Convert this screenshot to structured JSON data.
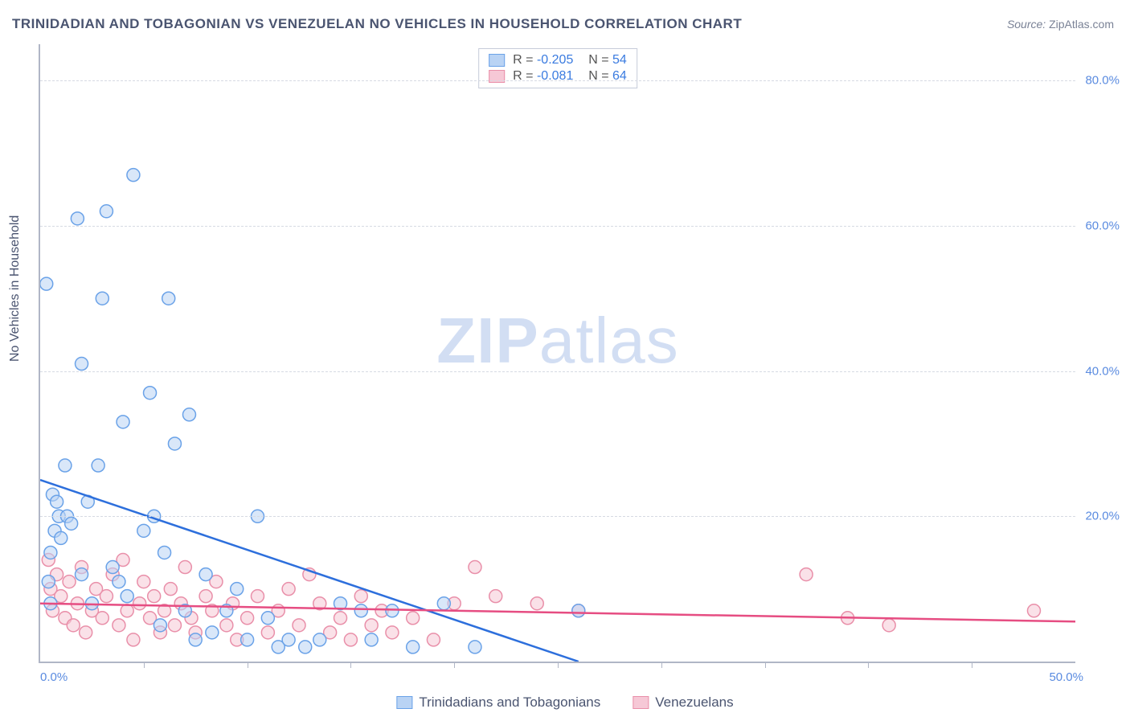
{
  "title": "TRINIDADIAN AND TOBAGONIAN VS VENEZUELAN NO VEHICLES IN HOUSEHOLD CORRELATION CHART",
  "source_label": "Source:",
  "source_value": "ZipAtlas.com",
  "ylabel": "No Vehicles in Household",
  "watermark": "ZIPatlas",
  "chart": {
    "type": "scatter",
    "background_color": "#ffffff",
    "grid_color": "#d6dae3",
    "axis_color": "#b0b6c6",
    "tick_label_color": "#5a8be0",
    "label_color": "#4a5470",
    "label_fontsize": 16,
    "tick_fontsize": 15,
    "xlim": [
      0,
      50
    ],
    "ylim": [
      0,
      85
    ],
    "xtick_labels": {
      "0": "0.0%",
      "50": "50.0%"
    },
    "ytick_positions": [
      20,
      40,
      60,
      80
    ],
    "ytick_format": "%.1f%%",
    "xtick_minor_count": 9,
    "marker_radius": 8,
    "marker_stroke_width": 1.5,
    "trend_line_width": 2.5,
    "series": [
      {
        "name": "Trinidadians and Tobagonians",
        "fill_color": "#b9d3f4",
        "stroke_color": "#6aa2e8",
        "fill_opacity": 0.55,
        "line_color": "#2d6fdc",
        "dash_color": "#6aa2e8",
        "R": "-0.205",
        "N": "54",
        "trend": {
          "x1": 0,
          "y1": 25,
          "x2": 26,
          "y2": 0,
          "dash_to_x": 50
        },
        "points": [
          [
            0.3,
            52
          ],
          [
            0.4,
            11
          ],
          [
            0.5,
            15
          ],
          [
            0.5,
            8
          ],
          [
            0.6,
            23
          ],
          [
            0.7,
            18
          ],
          [
            0.8,
            22
          ],
          [
            0.9,
            20
          ],
          [
            1.0,
            17
          ],
          [
            1.2,
            27
          ],
          [
            1.3,
            20
          ],
          [
            1.5,
            19
          ],
          [
            1.8,
            61
          ],
          [
            2.0,
            12
          ],
          [
            2.0,
            41
          ],
          [
            2.3,
            22
          ],
          [
            2.5,
            8
          ],
          [
            2.8,
            27
          ],
          [
            3.0,
            50
          ],
          [
            3.2,
            62
          ],
          [
            3.5,
            13
          ],
          [
            3.8,
            11
          ],
          [
            4.0,
            33
          ],
          [
            4.2,
            9
          ],
          [
            4.5,
            67
          ],
          [
            5.0,
            18
          ],
          [
            5.3,
            37
          ],
          [
            5.5,
            20
          ],
          [
            5.8,
            5
          ],
          [
            6.0,
            15
          ],
          [
            6.2,
            50
          ],
          [
            6.5,
            30
          ],
          [
            7.0,
            7
          ],
          [
            7.2,
            34
          ],
          [
            7.5,
            3
          ],
          [
            8.0,
            12
          ],
          [
            8.3,
            4
          ],
          [
            9.0,
            7
          ],
          [
            9.5,
            10
          ],
          [
            10.0,
            3
          ],
          [
            10.5,
            20
          ],
          [
            11.0,
            6
          ],
          [
            11.5,
            2
          ],
          [
            12.0,
            3
          ],
          [
            12.8,
            2
          ],
          [
            13.5,
            3
          ],
          [
            14.5,
            8
          ],
          [
            15.5,
            7
          ],
          [
            16.0,
            3
          ],
          [
            17.0,
            7
          ],
          [
            18.0,
            2
          ],
          [
            19.5,
            8
          ],
          [
            21.0,
            2
          ],
          [
            26.0,
            7
          ]
        ]
      },
      {
        "name": "Venezuelans",
        "fill_color": "#f6c8d6",
        "stroke_color": "#e98fa9",
        "fill_opacity": 0.55,
        "line_color": "#e64d82",
        "R": "-0.081",
        "N": "64",
        "trend": {
          "x1": 0,
          "y1": 8,
          "x2": 50,
          "y2": 5.5
        },
        "points": [
          [
            0.4,
            14
          ],
          [
            0.5,
            10
          ],
          [
            0.6,
            7
          ],
          [
            0.8,
            12
          ],
          [
            1.0,
            9
          ],
          [
            1.2,
            6
          ],
          [
            1.4,
            11
          ],
          [
            1.6,
            5
          ],
          [
            1.8,
            8
          ],
          [
            2.0,
            13
          ],
          [
            2.2,
            4
          ],
          [
            2.5,
            7
          ],
          [
            2.7,
            10
          ],
          [
            3.0,
            6
          ],
          [
            3.2,
            9
          ],
          [
            3.5,
            12
          ],
          [
            3.8,
            5
          ],
          [
            4.0,
            14
          ],
          [
            4.2,
            7
          ],
          [
            4.5,
            3
          ],
          [
            4.8,
            8
          ],
          [
            5.0,
            11
          ],
          [
            5.3,
            6
          ],
          [
            5.5,
            9
          ],
          [
            5.8,
            4
          ],
          [
            6.0,
            7
          ],
          [
            6.3,
            10
          ],
          [
            6.5,
            5
          ],
          [
            6.8,
            8
          ],
          [
            7.0,
            13
          ],
          [
            7.3,
            6
          ],
          [
            7.5,
            4
          ],
          [
            8.0,
            9
          ],
          [
            8.3,
            7
          ],
          [
            8.5,
            11
          ],
          [
            9.0,
            5
          ],
          [
            9.3,
            8
          ],
          [
            9.5,
            3
          ],
          [
            10.0,
            6
          ],
          [
            10.5,
            9
          ],
          [
            11.0,
            4
          ],
          [
            11.5,
            7
          ],
          [
            12.0,
            10
          ],
          [
            12.5,
            5
          ],
          [
            13.0,
            12
          ],
          [
            13.5,
            8
          ],
          [
            14.0,
            4
          ],
          [
            14.5,
            6
          ],
          [
            15.0,
            3
          ],
          [
            15.5,
            9
          ],
          [
            16.0,
            5
          ],
          [
            16.5,
            7
          ],
          [
            17.0,
            4
          ],
          [
            18.0,
            6
          ],
          [
            19.0,
            3
          ],
          [
            20.0,
            8
          ],
          [
            21.0,
            13
          ],
          [
            22.0,
            9
          ],
          [
            24.0,
            8
          ],
          [
            26.0,
            7
          ],
          [
            37.0,
            12
          ],
          [
            39.0,
            6
          ],
          [
            41.0,
            5
          ],
          [
            48.0,
            7
          ]
        ]
      }
    ],
    "stats_legend": {
      "r_label": "R =",
      "n_label": "N ="
    },
    "bottom_legend_labels": [
      "Trinidadians and Tobagonians",
      "Venezuelans"
    ]
  }
}
